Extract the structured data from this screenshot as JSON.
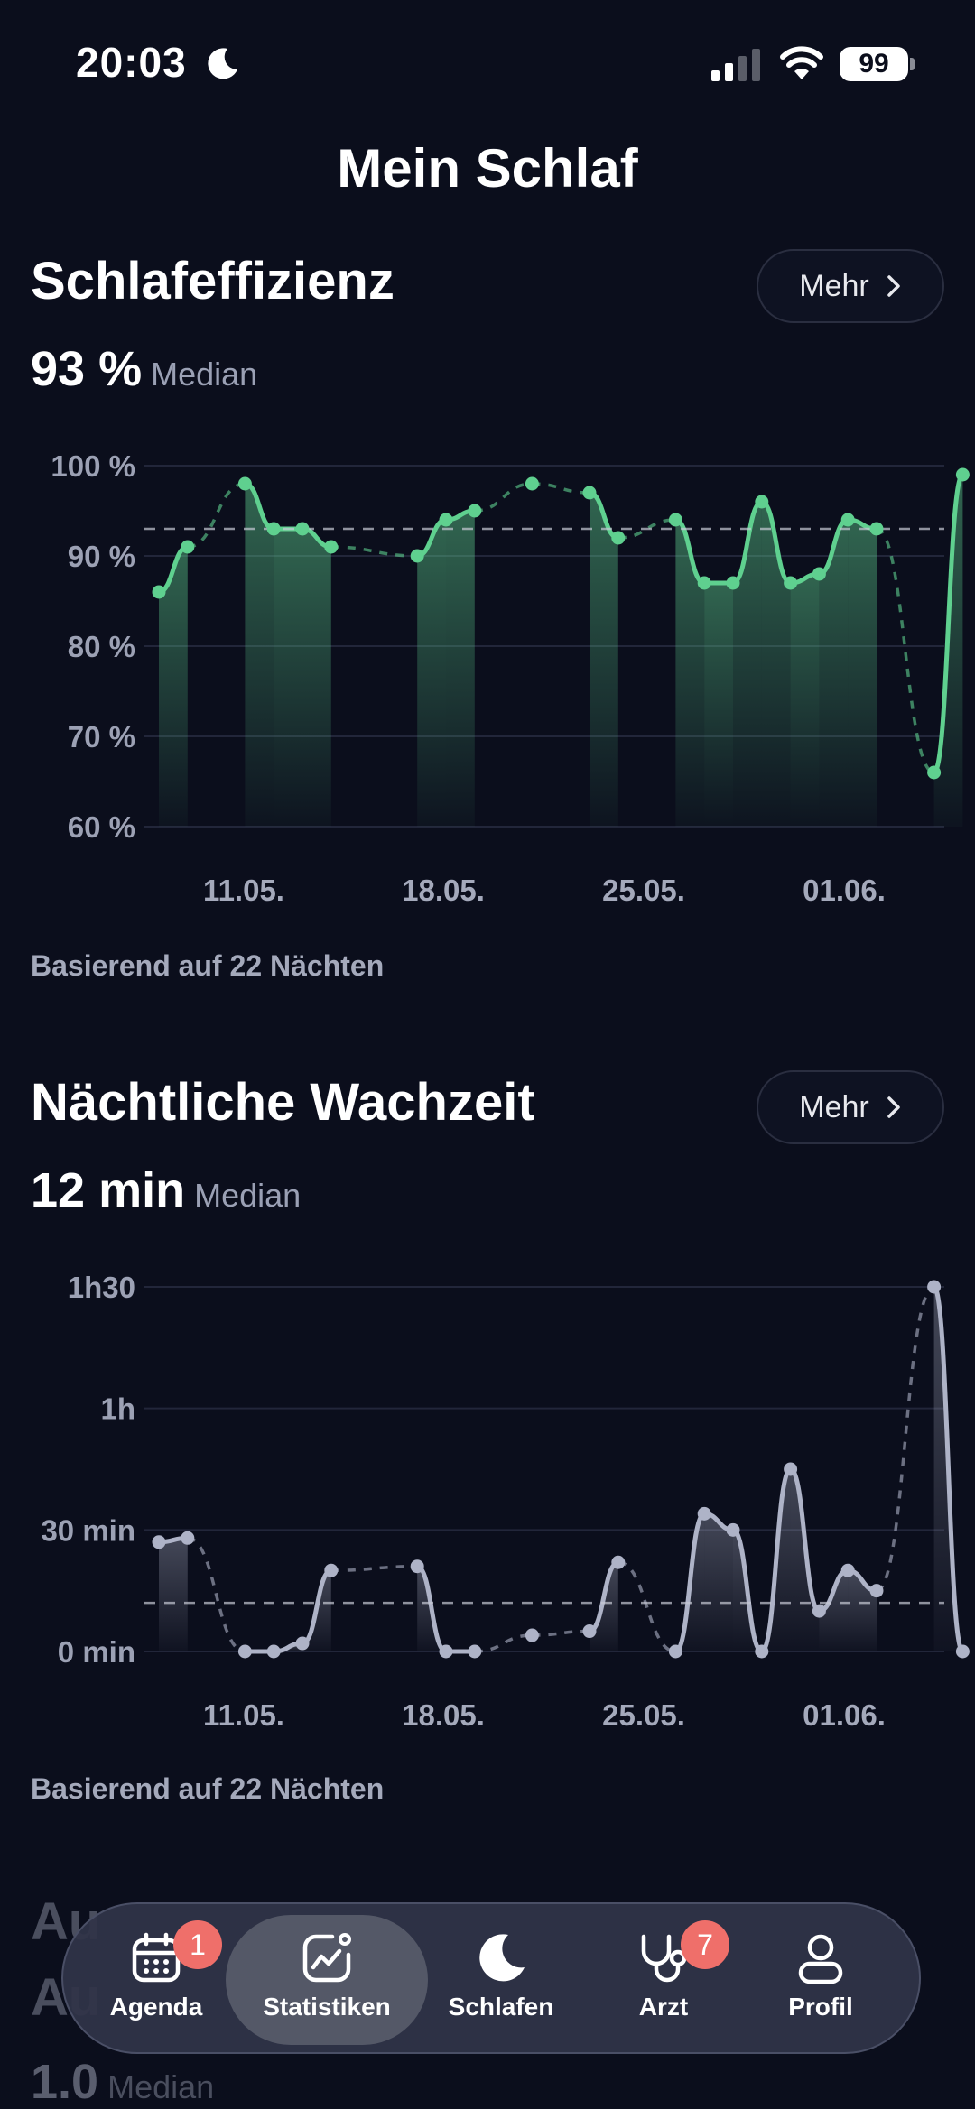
{
  "status_bar": {
    "time": "20:03",
    "battery": "99"
  },
  "page_title": "Mein Schlaf",
  "sleep_efficiency": {
    "title": "Schlafeffizienz",
    "more_label": "Mehr",
    "median_value": "93 %",
    "median_label": "Median",
    "based_on": "Basierend auf 22 Nächten",
    "chart_data": {
      "type": "line",
      "y_tick_labels": [
        "100 %",
        "90 %",
        "80 %",
        "70 %",
        "60 %"
      ],
      "ylim": [
        60,
        100
      ],
      "x_tick_labels": [
        "11.05.",
        "18.05.",
        "25.05.",
        "01.06."
      ],
      "median": 93,
      "color": "#5fd08f",
      "points": [
        {
          "date": "07.05.",
          "value": 86,
          "measured": true
        },
        {
          "date": "08.05.",
          "value": 91,
          "measured": true
        },
        {
          "date": "10.05.",
          "value": 98,
          "measured": true
        },
        {
          "date": "11.05.",
          "value": 93,
          "measured": true
        },
        {
          "date": "12.05.",
          "value": 93,
          "measured": true
        },
        {
          "date": "13.05.",
          "value": 91,
          "measured": true
        },
        {
          "date": "16.05.",
          "value": 90,
          "measured": true
        },
        {
          "date": "17.05.",
          "value": 94,
          "measured": true
        },
        {
          "date": "18.05.",
          "value": 95,
          "measured": true
        },
        {
          "date": "20.05.",
          "value": 98,
          "measured": false
        },
        {
          "date": "22.05.",
          "value": 97,
          "measured": true
        },
        {
          "date": "23.05.",
          "value": 92,
          "measured": true
        },
        {
          "date": "25.05.",
          "value": 94,
          "measured": true
        },
        {
          "date": "26.05.",
          "value": 87,
          "measured": true
        },
        {
          "date": "27.05.",
          "value": 87,
          "measured": true
        },
        {
          "date": "28.05.",
          "value": 96,
          "measured": true
        },
        {
          "date": "29.05.",
          "value": 87,
          "measured": true
        },
        {
          "date": "30.05.",
          "value": 88,
          "measured": true
        },
        {
          "date": "31.05.",
          "value": 94,
          "measured": true
        },
        {
          "date": "01.06.",
          "value": 93,
          "measured": true
        },
        {
          "date": "03.06.",
          "value": 66,
          "measured": true
        },
        {
          "date": "04.06.",
          "value": 99,
          "measured": true
        }
      ]
    }
  },
  "wake_time": {
    "title": "Nächtliche Wachzeit",
    "more_label": "Mehr",
    "median_value": "12 min",
    "median_label": "Median",
    "based_on": "Basierend auf 22 Nächten",
    "chart_data": {
      "type": "line",
      "y_tick_labels": [
        "1h30",
        "1h",
        "30 min",
        "0 min"
      ],
      "ylim": [
        0,
        90
      ],
      "x_tick_labels": [
        "11.05.",
        "18.05.",
        "25.05.",
        "01.06."
      ],
      "median": 12,
      "color": "#aeb3c7",
      "points": [
        {
          "date": "07.05.",
          "value": 27,
          "measured": true
        },
        {
          "date": "08.05.",
          "value": 28,
          "measured": true
        },
        {
          "date": "10.05.",
          "value": 0,
          "measured": true
        },
        {
          "date": "11.05.",
          "value": 0,
          "measured": true
        },
        {
          "date": "12.05.",
          "value": 2,
          "measured": true
        },
        {
          "date": "13.05.",
          "value": 20,
          "measured": true
        },
        {
          "date": "16.05.",
          "value": 21,
          "measured": true
        },
        {
          "date": "17.05.",
          "value": 0,
          "measured": true
        },
        {
          "date": "18.05.",
          "value": 0,
          "measured": true
        },
        {
          "date": "20.05.",
          "value": 4,
          "measured": false
        },
        {
          "date": "22.05.",
          "value": 5,
          "measured": true
        },
        {
          "date": "23.05.",
          "value": 22,
          "measured": true
        },
        {
          "date": "25.05.",
          "value": 0,
          "measured": true
        },
        {
          "date": "26.05.",
          "value": 34,
          "measured": true
        },
        {
          "date": "27.05.",
          "value": 30,
          "measured": true
        },
        {
          "date": "28.05.",
          "value": 0,
          "measured": true
        },
        {
          "date": "29.05.",
          "value": 45,
          "measured": true
        },
        {
          "date": "30.05.",
          "value": 10,
          "measured": true
        },
        {
          "date": "31.05.",
          "value": 20,
          "measured": true
        },
        {
          "date": "01.06.",
          "value": 15,
          "measured": true
        },
        {
          "date": "03.06.",
          "value": 90,
          "measured": true
        },
        {
          "date": "04.06.",
          "value": 0,
          "measured": true
        }
      ]
    }
  },
  "next_section": {
    "title_line1": "Au",
    "title_line2": "Au",
    "median_value": "1.0",
    "median_label": "Median"
  },
  "tabbar": {
    "tabs": [
      {
        "label": "Agenda",
        "icon": "calendar-icon",
        "badge": "1"
      },
      {
        "label": "Statistiken",
        "icon": "chart-icon",
        "active": true
      },
      {
        "label": "Schlafen",
        "icon": "moon-icon"
      },
      {
        "label": "Arzt",
        "icon": "stethoscope-icon",
        "badge": "7"
      },
      {
        "label": "Profil",
        "icon": "person-icon"
      }
    ]
  }
}
